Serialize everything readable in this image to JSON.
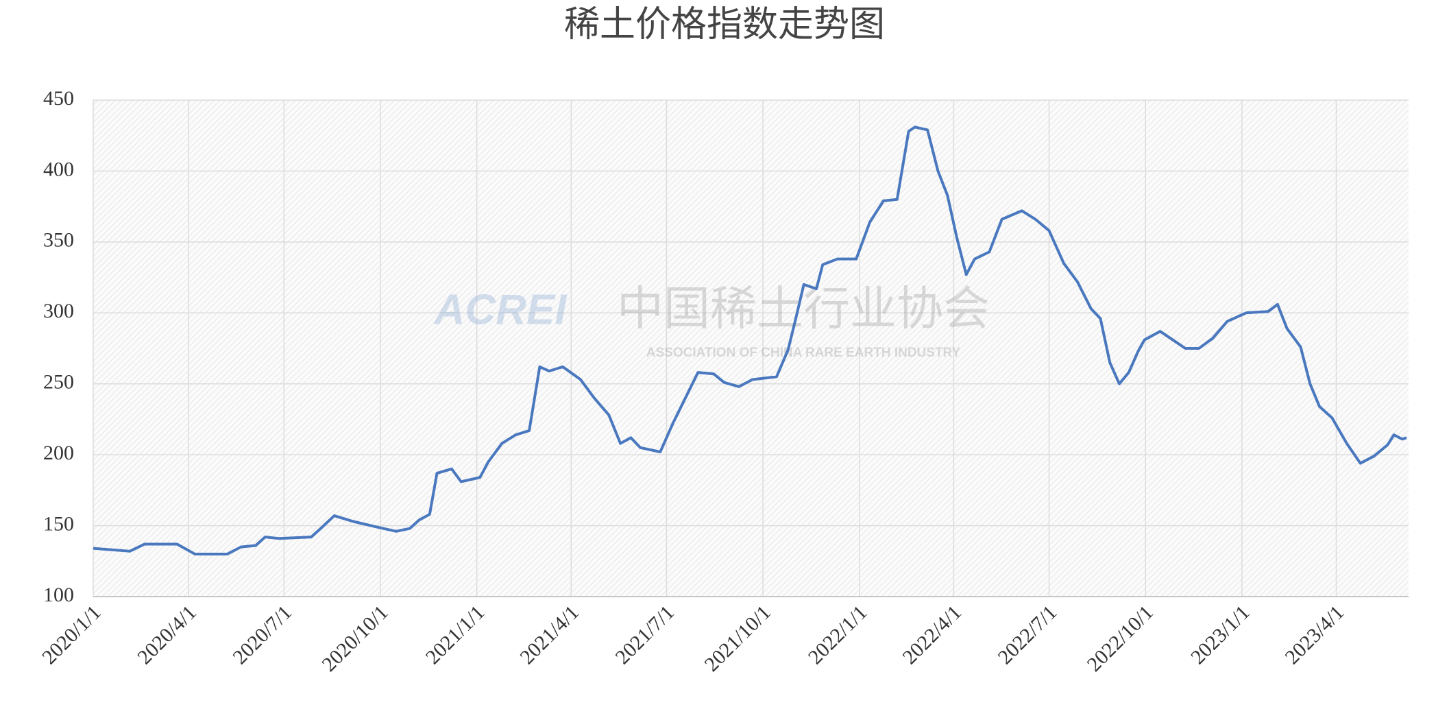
{
  "chart_data": {
    "type": "line",
    "title": "稀土价格指数走势图",
    "watermark_logo": "ACREI",
    "watermark_title": "中国稀土行业协会",
    "watermark_subtitle": "ASSOCIATION OF CHINA RARE EARTH INDUSTRY",
    "color": "#4a78bf",
    "grid": true,
    "xlim": [
      "2020/1/1",
      "2023/6/9"
    ],
    "xticks": [
      "2020/1/1",
      "2020/4/1",
      "2020/7/1",
      "2020/10/1",
      "2021/1/1",
      "2021/4/1",
      "2021/7/1",
      "2021/10/1",
      "2022/1/1",
      "2022/4/1",
      "2022/7/1",
      "2022/10/1",
      "2023/1/1",
      "2023/4/1"
    ],
    "ylim": [
      100,
      450
    ],
    "yticks": [
      100,
      150,
      200,
      250,
      300,
      350,
      400,
      450
    ],
    "x": [
      "2020/1/1",
      "2020/2/5",
      "2020/2/19",
      "2020/3/21",
      "2020/4/7",
      "2020/5/8",
      "2020/5/21",
      "2020/6/4",
      "2020/6/13",
      "2020/6/26",
      "2020/7/27",
      "2020/8/5",
      "2020/8/18",
      "2020/9/5",
      "2020/9/28",
      "2020/10/16",
      "2020/10/29",
      "2020/11/7",
      "2020/11/17",
      "2020/11/24",
      "2020/12/8",
      "2020/12/17",
      "2021/1/4",
      "2021/1/12",
      "2021/1/25",
      "2021/2/7",
      "2021/2/20",
      "2021/3/2",
      "2021/3/11",
      "2021/3/24",
      "2021/4/10",
      "2021/4/23",
      "2021/5/7",
      "2021/5/18",
      "2021/5/28",
      "2021/6/6",
      "2021/6/25",
      "2021/7/7",
      "2021/7/21",
      "2021/7/31",
      "2021/8/15",
      "2021/8/25",
      "2021/9/8",
      "2021/9/21",
      "2021/10/14",
      "2021/10/25",
      "2021/11/1",
      "2021/11/9",
      "2021/11/21",
      "2021/11/27",
      "2021/12/11",
      "2021/12/29",
      "2022/1/11",
      "2022/1/24",
      "2022/2/6",
      "2022/2/17",
      "2022/2/23",
      "2022/3/7",
      "2022/3/17",
      "2022/3/26",
      "2022/4/4",
      "2022/4/13",
      "2022/4/21",
      "2022/5/5",
      "2022/5/17",
      "2022/6/5",
      "2022/6/18",
      "2022/7/1",
      "2022/7/15",
      "2022/7/28",
      "2022/8/10",
      "2022/8/19",
      "2022/8/28",
      "2022/9/6",
      "2022/9/15",
      "2022/9/24",
      "2022/9/30",
      "2022/10/15",
      "2022/10/27",
      "2022/11/8",
      "2022/11/21",
      "2022/12/4",
      "2022/12/18",
      "2023/1/5",
      "2023/1/26",
      "2023/2/4",
      "2023/2/13",
      "2023/2/26",
      "2023/3/7",
      "2023/3/16",
      "2023/3/28",
      "2023/4/11",
      "2023/4/24",
      "2023/5/7",
      "2023/5/20",
      "2023/5/26",
      "2023/6/3",
      "2023/6/7"
    ],
    "values": [
      134,
      132,
      137,
      137,
      130,
      130,
      135,
      136,
      142,
      141,
      142,
      148,
      157,
      153,
      149,
      146,
      148,
      154,
      158,
      187,
      190,
      181,
      184,
      195,
      208,
      214,
      217,
      262,
      259,
      262,
      253,
      240,
      228,
      208,
      212,
      205,
      202,
      222,
      243,
      258,
      257,
      251,
      248,
      253,
      255,
      274,
      295,
      320,
      317,
      334,
      338,
      338,
      364,
      379,
      380,
      428,
      431,
      429,
      400,
      383,
      353,
      327,
      338,
      343,
      366,
      372,
      366,
      358,
      335,
      322,
      303,
      296,
      265,
      250,
      258,
      273,
      281,
      287,
      281,
      275,
      275,
      282,
      294,
      300,
      301,
      306,
      289,
      276,
      250,
      234,
      226,
      208,
      194,
      199,
      207,
      214,
      211,
      212
    ]
  }
}
